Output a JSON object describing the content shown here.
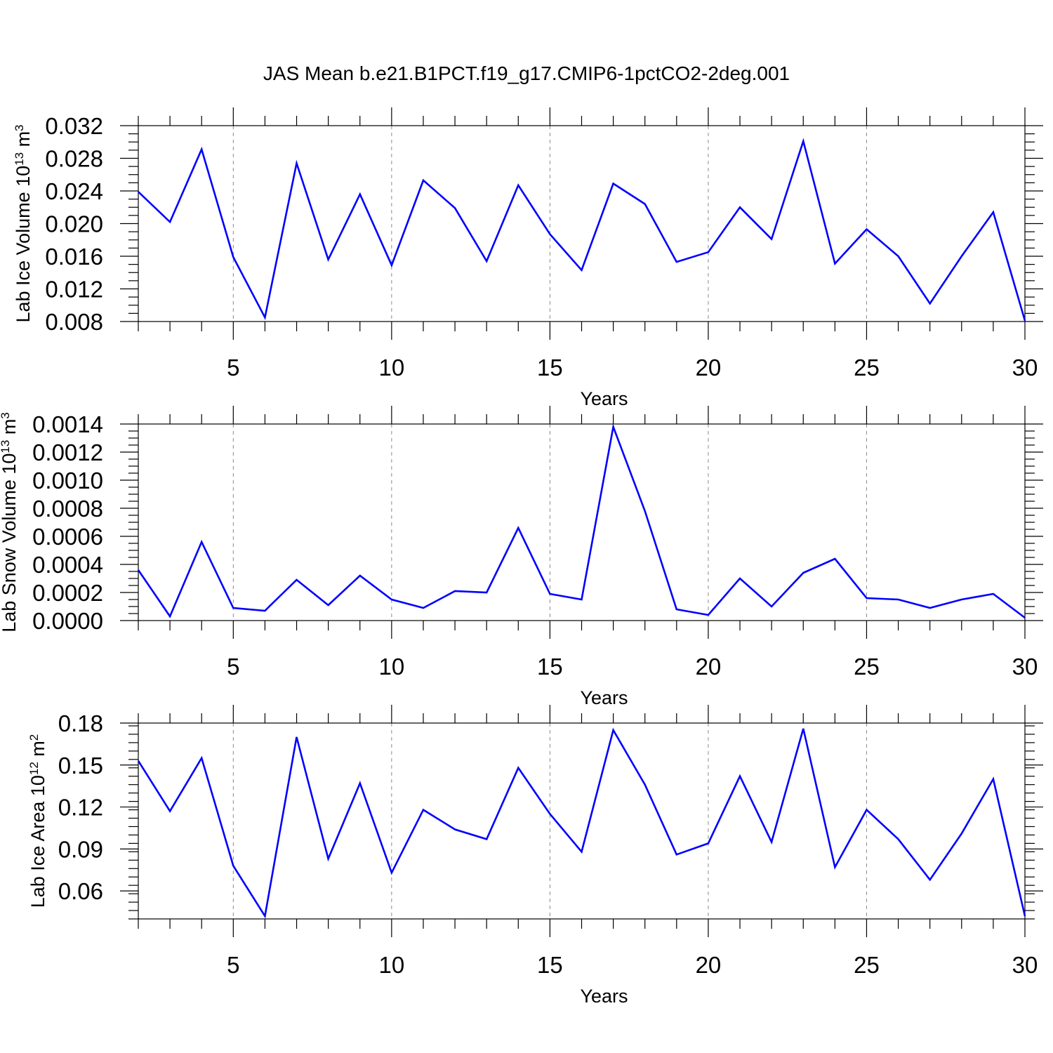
{
  "title": "JAS Mean b.e21.B1PCT.f19_g17.CMIP6-1pctCO2-2deg.001",
  "colors": {
    "line": "#0000ff",
    "grid": "#8a8a8a",
    "frame": "#000000"
  },
  "chart_data": [
    {
      "type": "line",
      "title": "",
      "xlabel": "Years",
      "ylabel": {
        "base": "Lab Ice Volume 10",
        "exp": "13",
        "unit": " m",
        "unit_exp": "3"
      },
      "xlim": [
        2,
        30
      ],
      "ylim": [
        0.008,
        0.032
      ],
      "x_ticks": [
        5,
        10,
        15,
        20,
        25,
        30
      ],
      "x_tick_labels": [
        "5",
        "10",
        "15",
        "20",
        "25",
        "30"
      ],
      "y_ticks": [
        0.008,
        0.012,
        0.016,
        0.02,
        0.024,
        0.028,
        0.032
      ],
      "y_tick_labels": [
        "0.008",
        "0.012",
        "0.016",
        "0.020",
        "0.024",
        "0.028",
        "0.032"
      ],
      "y_minor_step": 0.001,
      "grid": "vertical-dashed",
      "series": [
        {
          "x": [
            2,
            3,
            4,
            5,
            6,
            7,
            8,
            9,
            10,
            11,
            12,
            13,
            14,
            15,
            16,
            17,
            18,
            19,
            20,
            21,
            22,
            23,
            24,
            25,
            26,
            27,
            28,
            29,
            30
          ],
          "values": [
            0.0239,
            0.0202,
            0.0291,
            0.0159,
            0.0085,
            0.0274,
            0.0156,
            0.0236,
            0.0149,
            0.0253,
            0.0219,
            0.0154,
            0.0247,
            0.0187,
            0.0143,
            0.0249,
            0.0224,
            0.0153,
            0.0165,
            0.022,
            0.0181,
            0.0301,
            0.0151,
            0.0193,
            0.016,
            0.0102,
            0.016,
            0.0214,
            0.0081
          ]
        }
      ]
    },
    {
      "type": "line",
      "title": "",
      "xlabel": "Years",
      "ylabel": {
        "base": "Lab Snow Volume 10",
        "exp": "13",
        "unit": " m",
        "unit_exp": "3"
      },
      "xlim": [
        2,
        30
      ],
      "ylim": [
        0.0,
        0.0014
      ],
      "x_ticks": [
        5,
        10,
        15,
        20,
        25,
        30
      ],
      "x_tick_labels": [
        "5",
        "10",
        "15",
        "20",
        "25",
        "30"
      ],
      "y_ticks": [
        0.0,
        0.0002,
        0.0004,
        0.0006,
        0.0008,
        0.001,
        0.0012,
        0.0014
      ],
      "y_tick_labels": [
        "0.0000",
        "0.0002",
        "0.0004",
        "0.0006",
        "0.0008",
        "0.0010",
        "0.0012",
        "0.0014"
      ],
      "y_minor_step": 5e-05,
      "grid": "vertical-dashed",
      "series": [
        {
          "x": [
            2,
            3,
            4,
            5,
            6,
            7,
            8,
            9,
            10,
            11,
            12,
            13,
            14,
            15,
            16,
            17,
            18,
            19,
            20,
            21,
            22,
            23,
            24,
            25,
            26,
            27,
            28,
            29,
            30
          ],
          "values": [
            0.00036,
            3e-05,
            0.00056,
            9e-05,
            7e-05,
            0.00029,
            0.00011,
            0.00032,
            0.00015,
            9e-05,
            0.00021,
            0.0002,
            0.00066,
            0.00019,
            0.00015,
            0.00138,
            0.00078,
            8e-05,
            4e-05,
            0.0003,
            0.0001,
            0.00034,
            0.00044,
            0.00016,
            0.00015,
            9e-05,
            0.00015,
            0.00019,
            2e-05
          ]
        }
      ]
    },
    {
      "type": "line",
      "title": "",
      "xlabel": "Years",
      "ylabel": {
        "base": "Lab Ice Area 10",
        "exp": "12",
        "unit": " m",
        "unit_exp": "2"
      },
      "xlim": [
        2,
        30
      ],
      "ylim": [
        0.04,
        0.18
      ],
      "x_ticks": [
        5,
        10,
        15,
        20,
        25,
        30
      ],
      "x_tick_labels": [
        "5",
        "10",
        "15",
        "20",
        "25",
        "30"
      ],
      "y_ticks": [
        0.06,
        0.09,
        0.12,
        0.15,
        0.18
      ],
      "y_tick_labels": [
        "0.06",
        "0.09",
        "0.12",
        "0.15",
        "0.18"
      ],
      "y_minor_step": 0.006,
      "grid": "vertical-dashed",
      "series": [
        {
          "x": [
            2,
            3,
            4,
            5,
            6,
            7,
            8,
            9,
            10,
            11,
            12,
            13,
            14,
            15,
            16,
            17,
            18,
            19,
            20,
            21,
            22,
            23,
            24,
            25,
            26,
            27,
            28,
            29,
            30
          ],
          "values": [
            0.153,
            0.117,
            0.155,
            0.078,
            0.042,
            0.17,
            0.083,
            0.137,
            0.073,
            0.118,
            0.104,
            0.097,
            0.148,
            0.115,
            0.088,
            0.175,
            0.136,
            0.086,
            0.094,
            0.142,
            0.095,
            0.176,
            0.077,
            0.118,
            0.097,
            0.068,
            0.101,
            0.14,
            0.042
          ]
        }
      ]
    }
  ]
}
